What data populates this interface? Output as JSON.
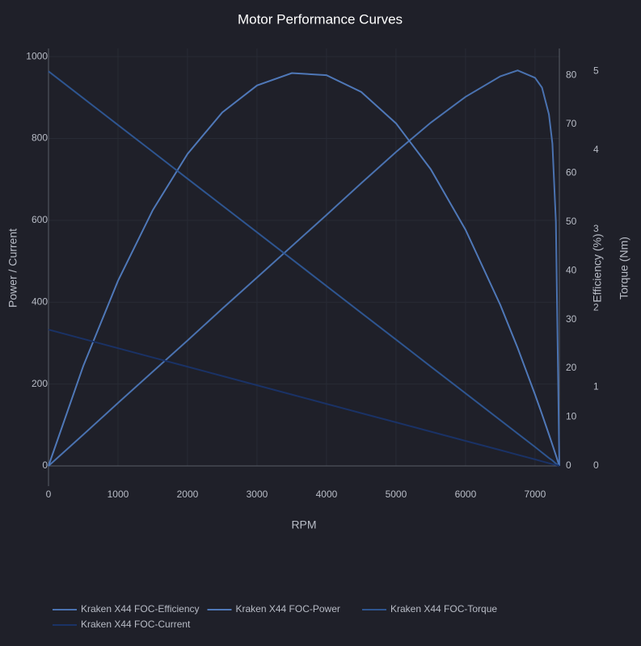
{
  "chart_data": {
    "type": "line",
    "title": "Motor Performance Curves",
    "x_label": "RPM",
    "y_label": "Power / Current",
    "y2_label": "Efficiency (%)",
    "y3_label": "Torque (Nm)",
    "x": [
      0,
      500,
      1000,
      1500,
      2000,
      2500,
      3000,
      3500,
      4000,
      4500,
      5000,
      5500,
      6000,
      6500,
      6750,
      7000,
      7100,
      7200,
      7250,
      7300,
      7350
    ],
    "xlim": [
      0,
      7350
    ],
    "xticks": [
      0,
      1000,
      2000,
      3000,
      4000,
      5000,
      6000,
      7000
    ],
    "ylim": [
      0,
      1020
    ],
    "yticks": [
      0,
      200,
      400,
      600,
      800,
      1000
    ],
    "y2lim": [
      0,
      85.5
    ],
    "y2ticks": [
      0,
      10,
      20,
      30,
      40,
      50,
      60,
      70,
      80
    ],
    "y3lim": [
      0,
      5.29
    ],
    "y3ticks": [
      0,
      1,
      2,
      3,
      4,
      5
    ],
    "grid": true,
    "series": [
      {
        "name": "Kraken X44 FOC-Efficiency",
        "color": "#4a72b0",
        "axis": "y2",
        "values": [
          0,
          6.4,
          12.9,
          19.3,
          25.7,
          32.2,
          38.6,
          45.0,
          51.4,
          57.9,
          64.3,
          70.3,
          75.6,
          79.8,
          81,
          79.5,
          77.5,
          72,
          66,
          50,
          0
        ]
      },
      {
        "name": "Kraken X44 FOC-Power",
        "color": "#4f78b8",
        "axis": "y",
        "values": [
          0,
          244.0,
          452.3,
          625.1,
          762.3,
          863.8,
          929.7,
          959.9,
          954.6,
          913.7,
          837.1,
          724.9,
          577.1,
          393.6,
          288.5,
          174.5,
          126.5,
          76.9,
          51.6,
          26.0,
          0
        ]
      },
      {
        "name": "Kraken X44 FOC-Torque",
        "color": "#2e5590",
        "axis": "y3",
        "values": [
          5,
          4.66,
          4.32,
          3.98,
          3.64,
          3.3,
          2.96,
          2.62,
          2.28,
          1.94,
          1.6,
          1.26,
          0.92,
          0.58,
          0.41,
          0.24,
          0.17,
          0.1,
          0.07,
          0.03,
          0
        ]
      },
      {
        "name": "Kraken X44 FOC-Current",
        "color": "#1a3266",
        "axis": "y",
        "values": [
          333,
          310.3,
          287.7,
          265.0,
          242.4,
          219.7,
          197.1,
          174.4,
          151.8,
          129.1,
          106.5,
          83.9,
          61.2,
          38.6,
          27.3,
          15.9,
          11.3,
          6.8,
          4.5,
          2.3,
          0
        ]
      }
    ]
  }
}
